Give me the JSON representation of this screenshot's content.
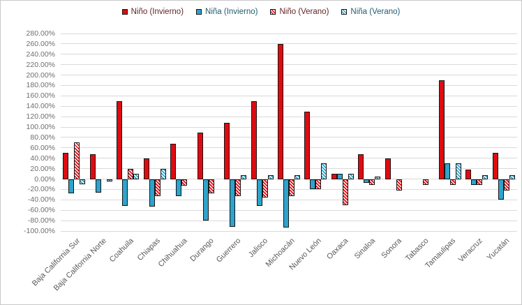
{
  "chart_data": {
    "type": "bar",
    "title": "",
    "xlabel": "",
    "ylabel": "",
    "grid": true,
    "legend_position": "top",
    "ylim": [
      -100,
      280
    ],
    "y_tick_step": 20,
    "y_tick_labels": [
      "280.00%",
      "260.00%",
      "240.00%",
      "220.00%",
      "200.00%",
      "180.00%",
      "160.00%",
      "140.00%",
      "120.00%",
      "100.00%",
      "80.00%",
      "60.00%",
      "40.00%",
      "20.00%",
      "0.00%",
      "-20.00%",
      "-40.00%",
      "-60.00%",
      "-80.00%",
      "-100.00%"
    ],
    "categories": [
      "Baja California Sur",
      "Baja California Norte",
      "Coahuila",
      "Chiapas",
      "Chihuahua",
      "Durango",
      "Guerrero",
      "Jalisco",
      "Michoacán",
      "Nuevo León",
      "Oaxaca",
      "Sinaloa",
      "Sonora",
      "Tabasco",
      "Tamaulipas",
      "Veracruz",
      "Yucatán"
    ],
    "series": [
      {
        "name": "Niño (Invierno)",
        "style": "red-solid",
        "label_color_class": "lg-red",
        "values": [
          50,
          48,
          150,
          40,
          68,
          90,
          108,
          150,
          260,
          130,
          10,
          48,
          40,
          0,
          190,
          18,
          50
        ]
      },
      {
        "name": "Niña (Invierno)",
        "style": "blue-solid",
        "label_color_class": "lg-blue",
        "values": [
          -28,
          -26,
          -52,
          -53,
          -33,
          -80,
          -92,
          -52,
          -93,
          -20,
          10,
          -8,
          0,
          0,
          30,
          -12,
          -40
        ]
      },
      {
        "name": "Niño (Verano)",
        "style": "red-hatched",
        "label_color_class": "lg-red",
        "values": [
          70,
          0,
          20,
          -33,
          -13,
          -27,
          -33,
          -35,
          -33,
          -20,
          -50,
          -12,
          -22,
          -12,
          -12,
          -12,
          -22
        ]
      },
      {
        "name": "Niña (Verano)",
        "style": "blue-hatched",
        "label_color_class": "lg-blue",
        "values": [
          -10,
          -5,
          10,
          20,
          0,
          0,
          8,
          8,
          8,
          30,
          10,
          5,
          0,
          0,
          30,
          8,
          8
        ]
      }
    ]
  },
  "colors": {
    "series_red": "#df0b12",
    "series_blue": "#2fa3cb",
    "gridline": "#d9d9d9",
    "bar_border": "#141414",
    "y_tick_text": "#6e6e6e",
    "x_label_text": "#595959",
    "legend_text_red": "#632423",
    "legend_text_blue": "#1e5c6e"
  }
}
